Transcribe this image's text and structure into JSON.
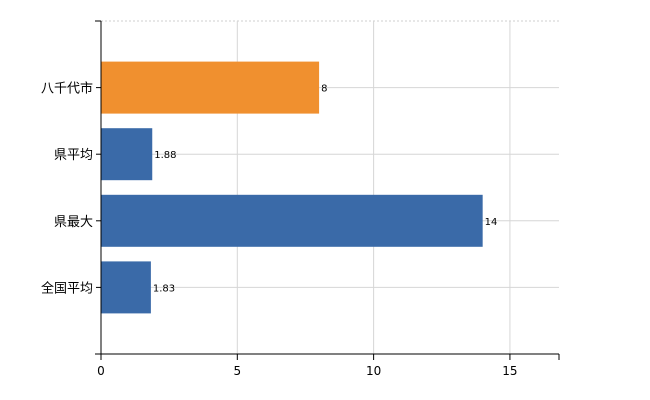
{
  "chart_data": {
    "type": "bar",
    "orientation": "horizontal",
    "categories": [
      "八千代市",
      "県平均",
      "県最大",
      "全国平均"
    ],
    "values": [
      8,
      1.88,
      14,
      1.83
    ],
    "value_labels": [
      "8",
      "1.88",
      "14",
      "1.83"
    ],
    "colors": [
      "#f0902f",
      "#3a6aa8",
      "#3a6aa8",
      "#3a6aa8"
    ],
    "xlim": [
      0,
      16.8
    ],
    "x_ticks": [
      0,
      5,
      10,
      15
    ],
    "x_tick_labels": [
      "0",
      "5",
      "10",
      "15"
    ],
    "grid": true,
    "title": "",
    "xlabel": "",
    "ylabel": ""
  }
}
